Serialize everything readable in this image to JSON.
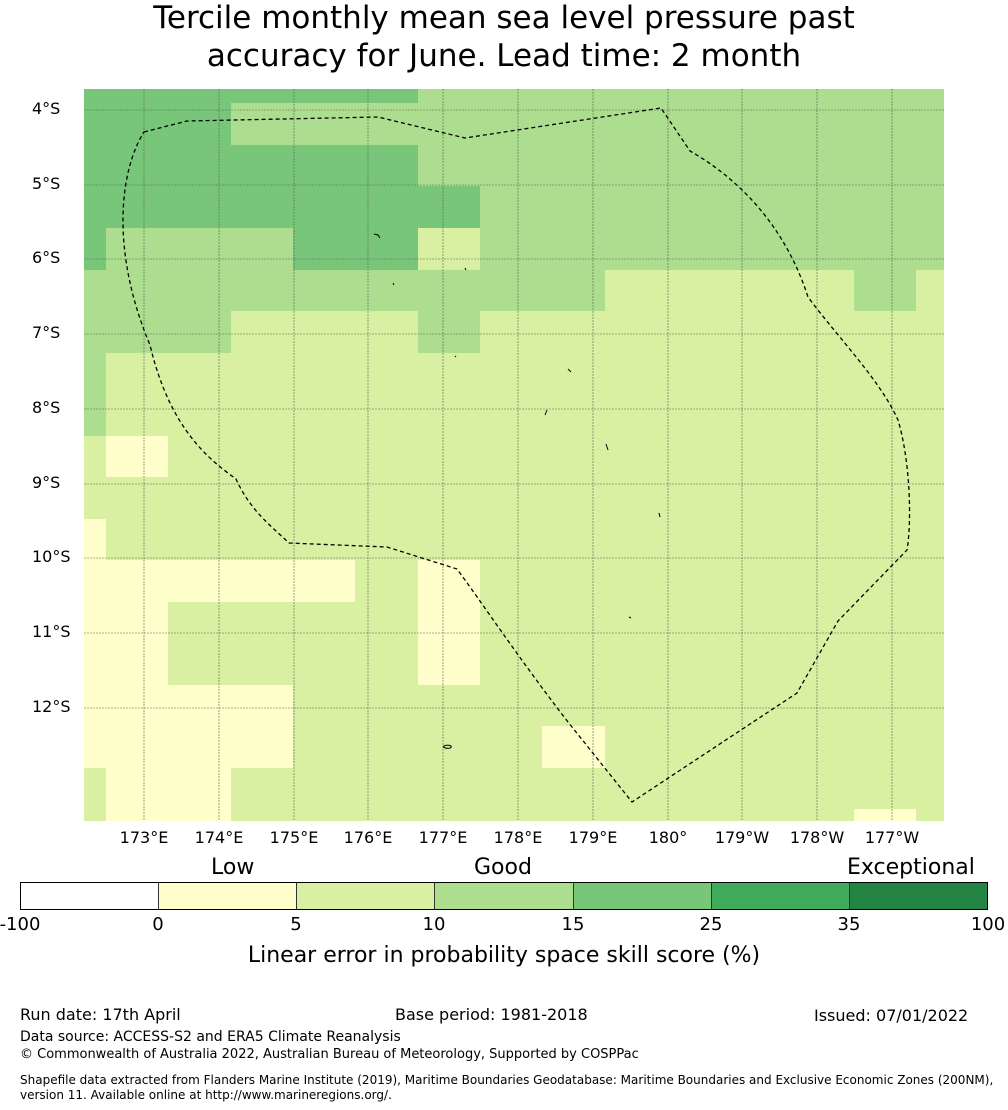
{
  "title": {
    "line1": "Tercile monthly mean sea level pressure past",
    "line2": "accuracy for June. Lead time: 2 month"
  },
  "map": {
    "lat_labels": [
      "4°S",
      "5°S",
      "6°S",
      "7°S",
      "8°S",
      "9°S",
      "10°S",
      "11°S",
      "12°S"
    ],
    "lon_labels": [
      "173°E",
      "174°E",
      "175°E",
      "176°E",
      "177°E",
      "178°E",
      "179°E",
      "180°",
      "179°W",
      "178°W",
      "177°W"
    ],
    "eez_boundary": "dashed",
    "grid": true
  },
  "legend": {
    "categories": [
      "Low",
      "Good",
      "Exceptional"
    ],
    "ticks": [
      "-100",
      "0",
      "5",
      "10",
      "15",
      "25",
      "35",
      "100"
    ],
    "colors": [
      "#ffffff",
      "#ffffcc",
      "#d9f0a3",
      "#addd8e",
      "#78c679",
      "#41ab5d",
      "#238443"
    ],
    "label": "Linear error in probability space skill score (%)"
  },
  "footer": {
    "run_date": "Run date: 17th April",
    "base_period": "Base period: 1981-2018",
    "issued": "Issued: 07/01/2022",
    "data_source": "Data source: ACCESS-S2 and ERA5 Climate Reanalysis",
    "copyright": "© Commonwealth of Australia 2022, Australian Bureau of Meteorology, Supported by COSPPac",
    "shapefile_line1": "Shapefile data extracted from Flanders Marine Institute (2019), Maritime Boundaries Geodatabase: Maritime Boundaries and Exclusive Economic Zones (200NM),",
    "shapefile_line2": "version 11. Available online at http://www.marineregions.org/."
  }
}
